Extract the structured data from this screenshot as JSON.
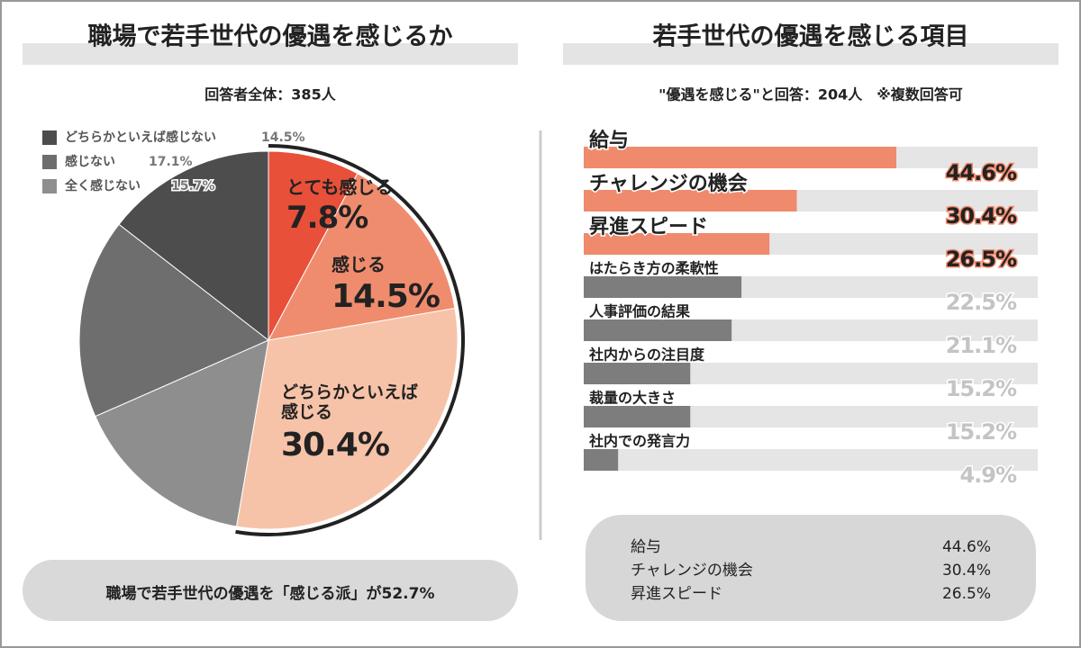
{
  "chart_data": [
    {
      "type": "pie",
      "title": "職場で若手世代の優遇を感じるか",
      "subtitle": "回答者全体：385人",
      "categories": [
        "とても感じる",
        "感じる",
        "どちらかといえば感じる",
        "全く感じない",
        "感じない",
        "どちらかといえば感じない"
      ],
      "values": [
        7.8,
        14.5,
        30.4,
        15.7,
        17.1,
        14.5
      ],
      "value_labels": [
        "7.8%",
        "14.5%",
        "30.4%",
        "15.7%",
        "17.1%",
        "14.5%"
      ],
      "colors": [
        "#e8503a",
        "#f08c6e",
        "#f7c3a8",
        "#8e8e8e",
        "#6e6e6e",
        "#4d4d4d"
      ],
      "annotation": "職場で若手世代の優遇を「感じる派」が52.7%"
    },
    {
      "type": "bar",
      "orientation": "horizontal",
      "title": "若手世代の優遇を感じる項目",
      "subtitle": "\"優遇を感じる\"と回答：204人　※複数回答可",
      "categories": [
        "給与",
        "チャレンジの機会",
        "昇進スピード",
        "はたらき方の柔軟性",
        "人事評価の結果",
        "社内からの注目度",
        "裁量の大きさ",
        "社内での発言力"
      ],
      "values": [
        44.6,
        30.4,
        26.5,
        22.5,
        21.1,
        15.2,
        15.2,
        4.9
      ],
      "value_labels": [
        "44.6%",
        "30.4%",
        "26.5%",
        "22.5%",
        "21.1%",
        "15.2%",
        "15.2%",
        "4.9%"
      ],
      "colors": [
        "#ef8a6c",
        "#ef8a6c",
        "#ef8a6c",
        "#7d7d7d",
        "#7d7d7d",
        "#7d7d7d",
        "#7d7d7d",
        "#7d7d7d"
      ]
    }
  ]
}
